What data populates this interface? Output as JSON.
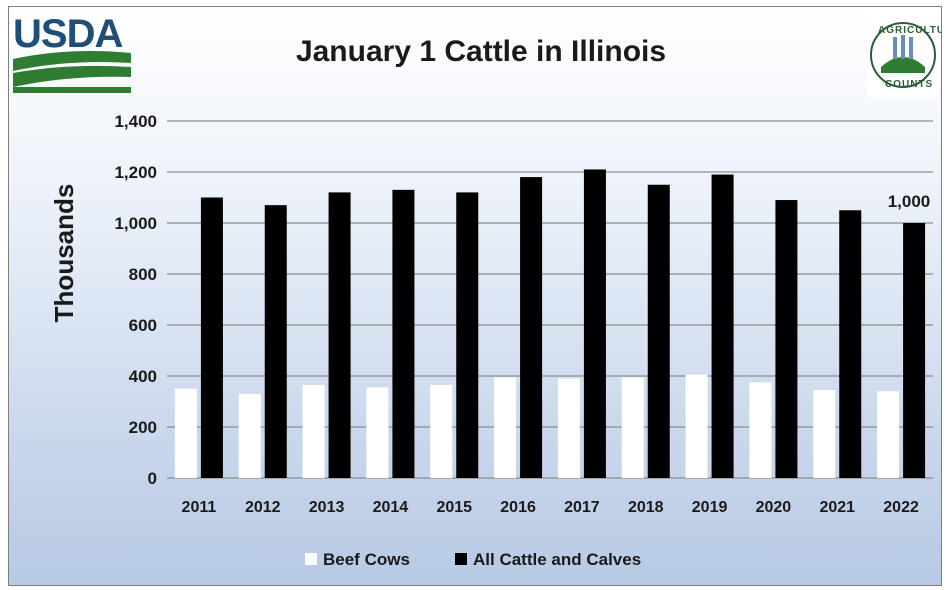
{
  "logos": {
    "usda_text": "USDA",
    "seal_top_text": "AGRICULTURE",
    "seal_bottom_text": "COUNTS"
  },
  "chart_data": {
    "type": "bar",
    "title": "January 1 Cattle in Illinois",
    "ylabel": "Thousands",
    "xlabel": "",
    "ylim": [
      0,
      1400
    ],
    "yticks": [
      "0",
      "200",
      "400",
      "600",
      "800",
      "1,000",
      "1,200",
      "1,400"
    ],
    "ytick_values": [
      0,
      200,
      400,
      600,
      800,
      1000,
      1200,
      1400
    ],
    "categories": [
      "2011",
      "2012",
      "2013",
      "2014",
      "2015",
      "2016",
      "2017",
      "2018",
      "2019",
      "2020",
      "2021",
      "2022"
    ],
    "series": [
      {
        "name": "Beef Cows",
        "color": "#ffffff",
        "values": [
          350,
          330,
          365,
          355,
          365,
          395,
          390,
          395,
          405,
          375,
          345,
          340
        ]
      },
      {
        "name": "All Cattle and Calves",
        "color": "#000000",
        "values": [
          1100,
          1070,
          1120,
          1130,
          1120,
          1180,
          1210,
          1150,
          1190,
          1090,
          1050,
          1000
        ]
      }
    ],
    "annotations": [
      {
        "series": 1,
        "index": 11,
        "text": "1,000"
      }
    ],
    "grid": true,
    "legend_position": "bottom"
  }
}
